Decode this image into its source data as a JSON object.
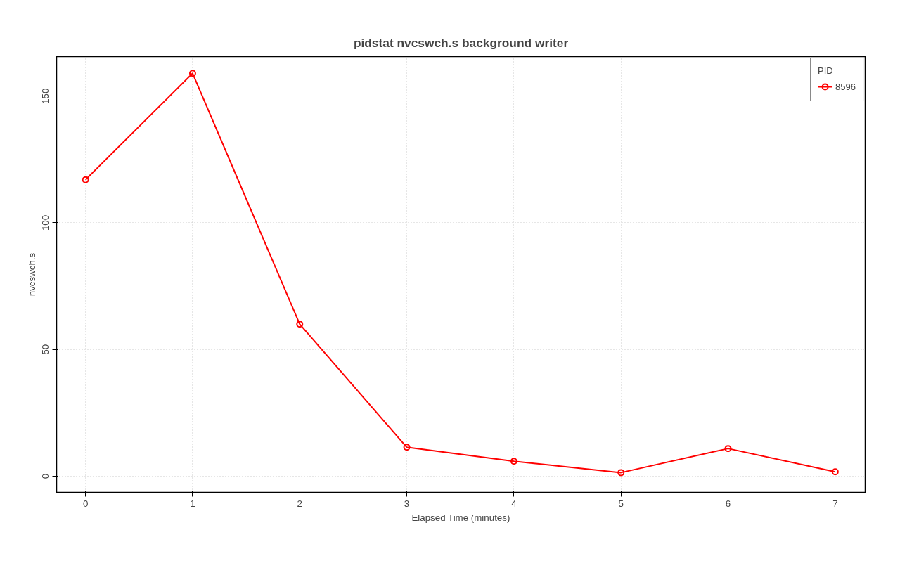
{
  "chart_data": {
    "type": "line",
    "title": "pidstat nvcswch.s background writer",
    "xlabel": "Elapsed Time (minutes)",
    "ylabel": "nvcswch.s",
    "legend_title": "PID",
    "x": [
      0,
      1,
      2,
      3,
      4,
      5,
      6,
      7
    ],
    "series": [
      {
        "name": "8596",
        "color": "#ff0000",
        "values": [
          117,
          159,
          60,
          11.4,
          5.9,
          1.4,
          10.9,
          1.7
        ]
      }
    ],
    "xlim": [
      -0.27,
      7.28
    ],
    "ylim": [
      -6.4,
      165.6
    ],
    "xticks": [
      0,
      1,
      2,
      3,
      4,
      5,
      6,
      7
    ],
    "yticks": [
      0,
      50,
      100,
      150
    ],
    "grid": true,
    "legend": "top right",
    "marker": "circle",
    "line_style": "solid"
  }
}
